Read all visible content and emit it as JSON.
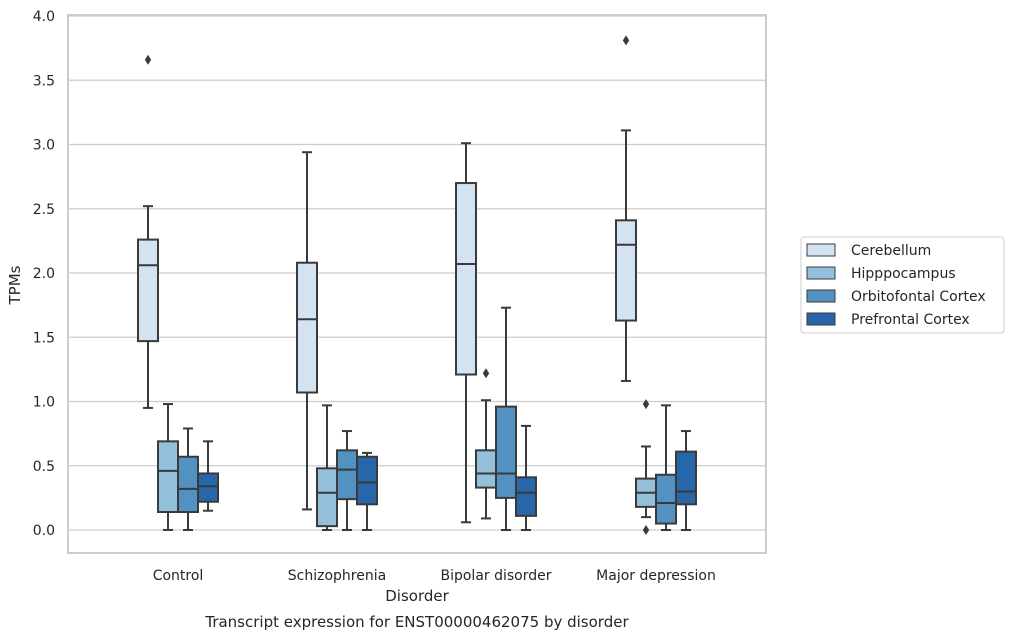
{
  "chart_data": {
    "type": "box",
    "caption": "Transcript expression for ENST00000462075 by disorder",
    "xlabel": "Disorder",
    "ylabel": "TPMs",
    "ylim": [
      -0.18,
      4.0
    ],
    "yticks": [
      "0.0",
      "0.5",
      "1.0",
      "1.5",
      "2.0",
      "2.5",
      "3.0",
      "3.5",
      "4.0"
    ],
    "grid": true,
    "legend_position": "right",
    "categories": [
      "Control",
      "Schizophrenia",
      "Bipolar disorder",
      "Major depression"
    ],
    "series": [
      {
        "name": "Cerebellum",
        "color": "#d4e3f2",
        "boxes": [
          {
            "whislo": 0.95,
            "q1": 1.47,
            "med": 2.06,
            "q3": 2.26,
            "whishi": 2.52,
            "fliers": [
              3.66
            ]
          },
          {
            "whislo": 0.16,
            "q1": 1.07,
            "med": 1.64,
            "q3": 2.08,
            "whishi": 2.94,
            "fliers": []
          },
          {
            "whislo": 0.06,
            "q1": 1.21,
            "med": 2.07,
            "q3": 2.7,
            "whishi": 3.01,
            "fliers": []
          },
          {
            "whislo": 1.16,
            "q1": 1.63,
            "med": 2.22,
            "q3": 2.41,
            "whishi": 3.11,
            "fliers": [
              3.81
            ]
          }
        ]
      },
      {
        "name": "Hipppocampus",
        "color": "#94c0dc",
        "boxes": [
          {
            "whislo": 0.0,
            "q1": 0.14,
            "med": 0.46,
            "q3": 0.69,
            "whishi": 0.98,
            "fliers": []
          },
          {
            "whislo": 0.0,
            "q1": 0.03,
            "med": 0.29,
            "q3": 0.48,
            "whishi": 0.97,
            "fliers": []
          },
          {
            "whislo": 0.09,
            "q1": 0.33,
            "med": 0.44,
            "q3": 0.62,
            "whishi": 1.01,
            "fliers": [
              1.22
            ]
          },
          {
            "whislo": 0.1,
            "q1": 0.18,
            "med": 0.29,
            "q3": 0.4,
            "whishi": 0.65,
            "fliers": [
              0.98,
              0.0
            ]
          }
        ]
      },
      {
        "name": "Orbitofontal Cortex",
        "color": "#5192c3",
        "boxes": [
          {
            "whislo": 0.0,
            "q1": 0.14,
            "med": 0.32,
            "q3": 0.57,
            "whishi": 0.79,
            "fliers": []
          },
          {
            "whislo": 0.0,
            "q1": 0.24,
            "med": 0.47,
            "q3": 0.62,
            "whishi": 0.77,
            "fliers": []
          },
          {
            "whislo": 0.0,
            "q1": 0.25,
            "med": 0.44,
            "q3": 0.96,
            "whishi": 1.73,
            "fliers": []
          },
          {
            "whislo": 0.0,
            "q1": 0.05,
            "med": 0.21,
            "q3": 0.43,
            "whishi": 0.97,
            "fliers": []
          }
        ]
      },
      {
        "name": "Prefrontal Cortex",
        "color": "#2766a9",
        "boxes": [
          {
            "whislo": 0.15,
            "q1": 0.22,
            "med": 0.34,
            "q3": 0.44,
            "whishi": 0.69,
            "fliers": []
          },
          {
            "whislo": 0.0,
            "q1": 0.2,
            "med": 0.37,
            "q3": 0.57,
            "whishi": 0.6,
            "fliers": []
          },
          {
            "whislo": 0.0,
            "q1": 0.11,
            "med": 0.29,
            "q3": 0.41,
            "whishi": 0.81,
            "fliers": []
          },
          {
            "whislo": 0.0,
            "q1": 0.2,
            "med": 0.3,
            "q3": 0.61,
            "whishi": 0.77,
            "fliers": []
          }
        ]
      }
    ]
  }
}
